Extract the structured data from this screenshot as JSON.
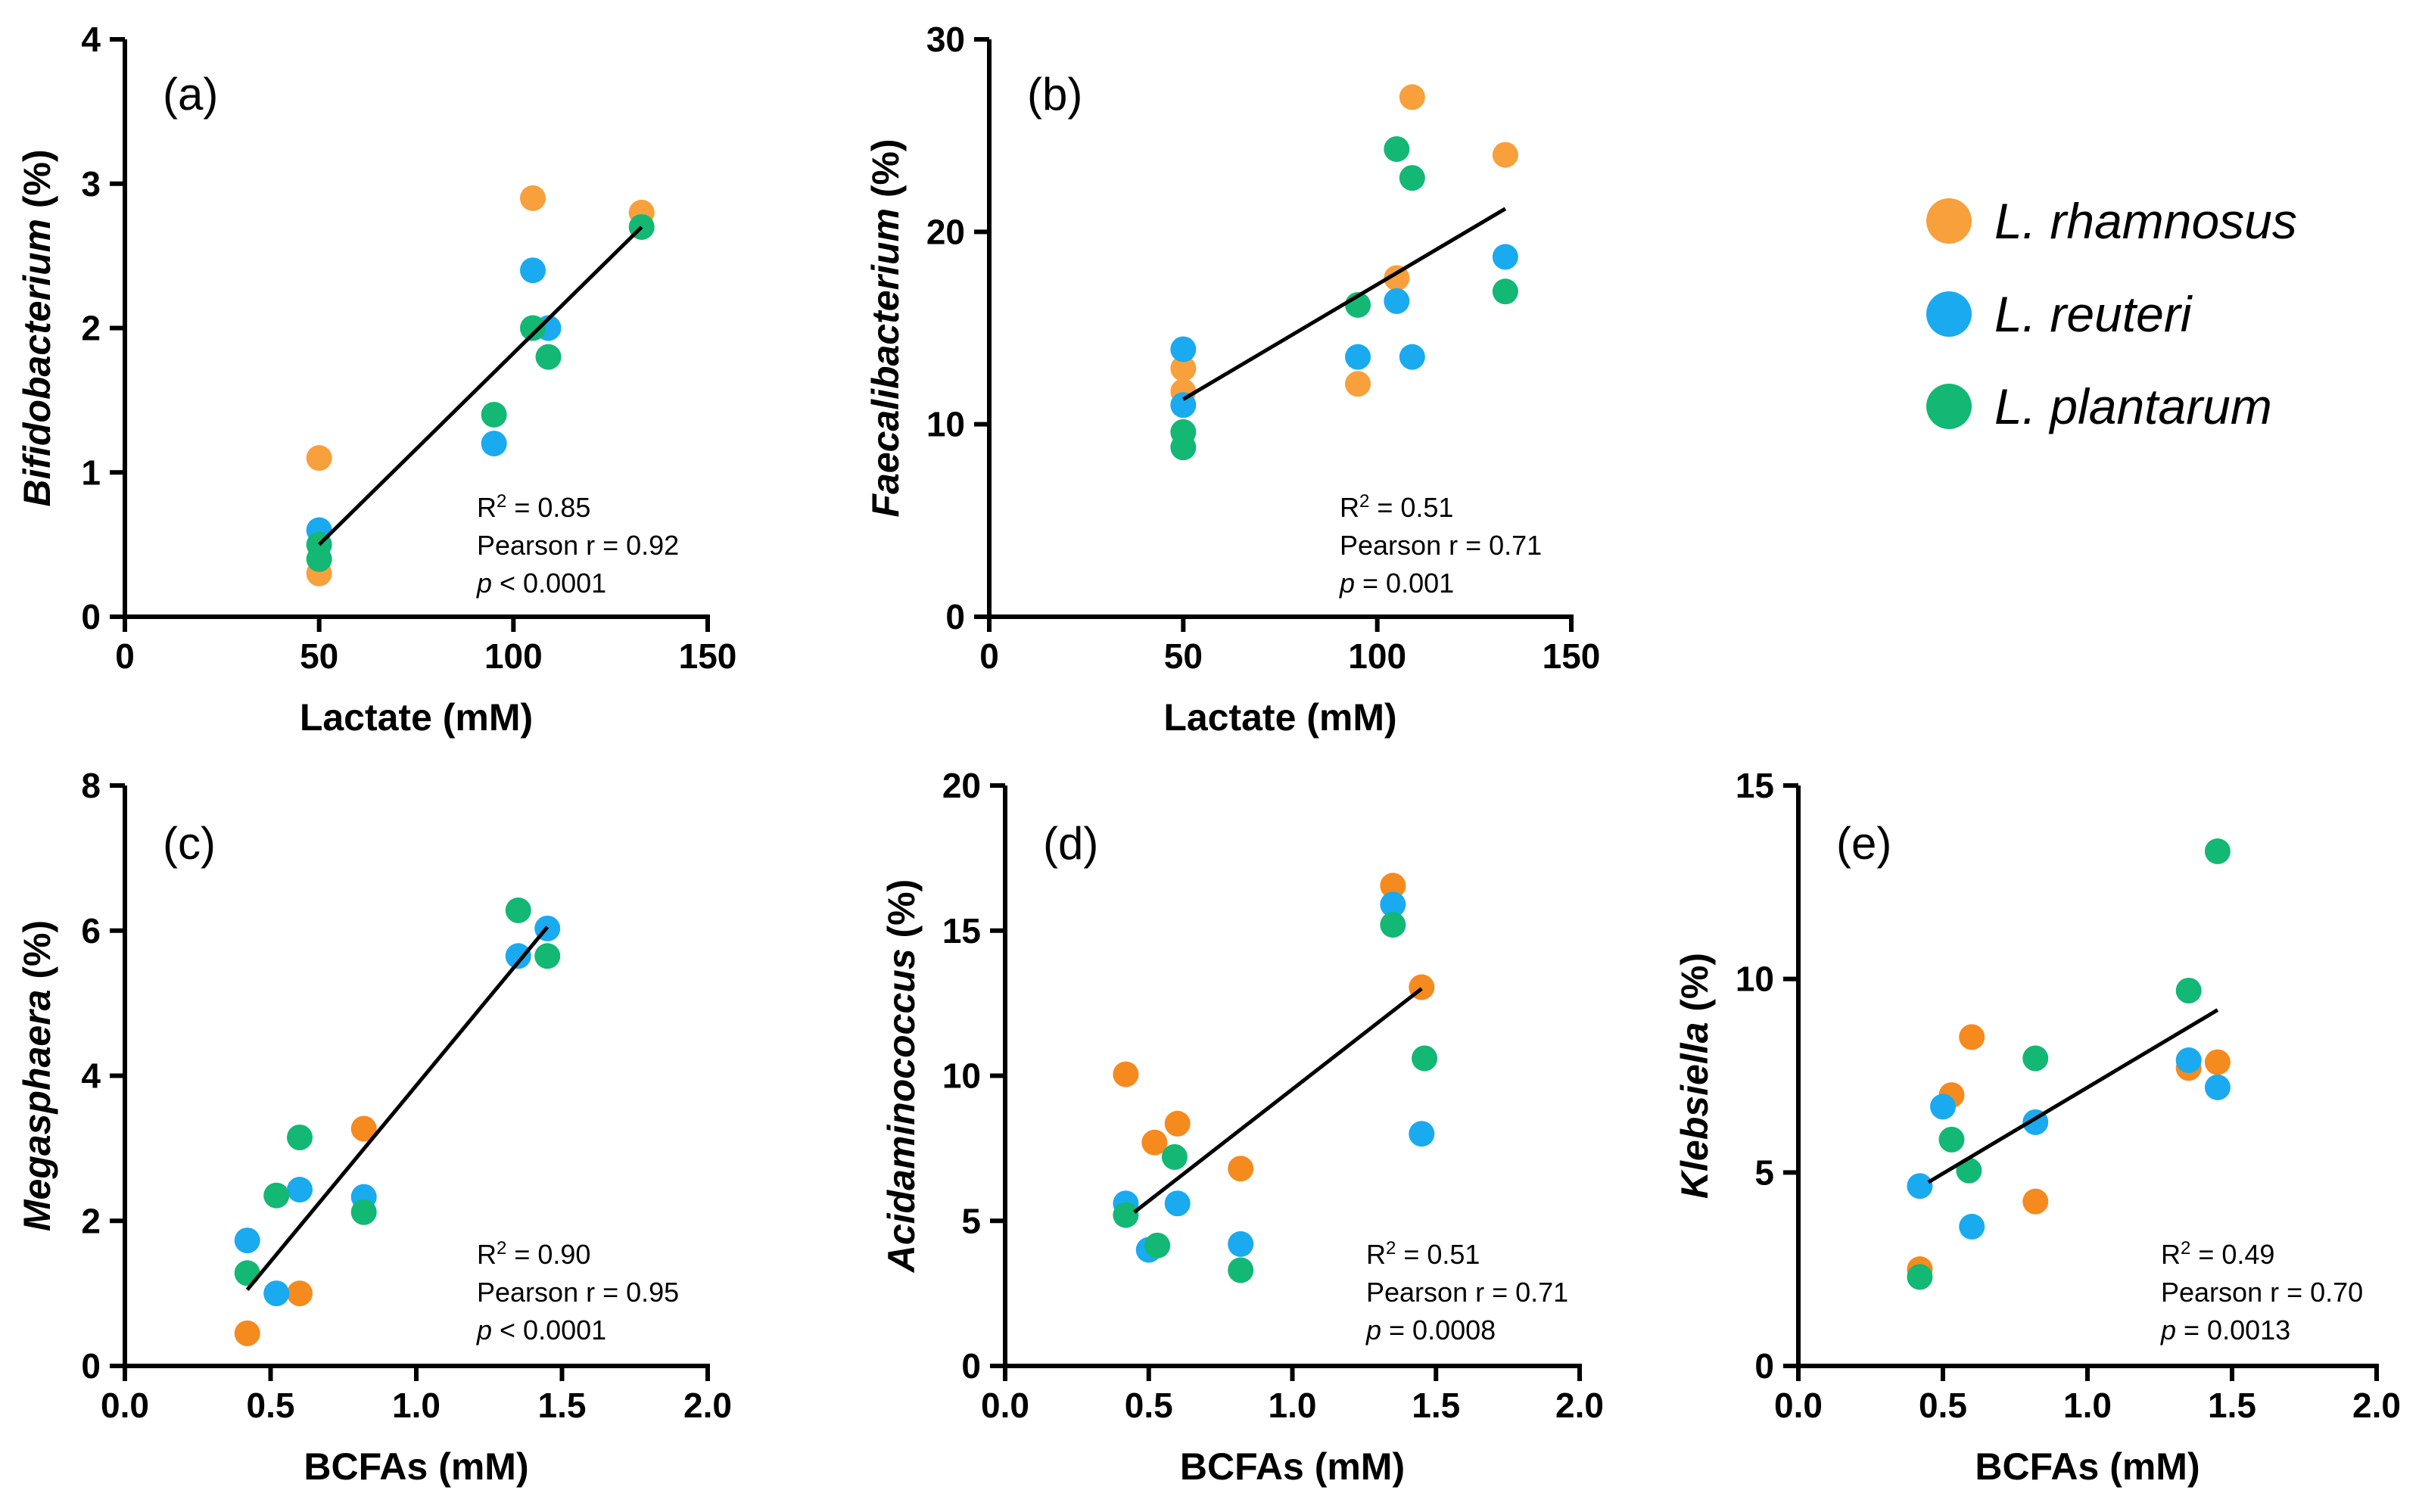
{
  "colors": {
    "rhamnosus": "#F7A03C",
    "reuteri": "#1AAAF0",
    "plantarum": "#12B874",
    "orange_strong": "#F58A1F",
    "axis": "#000000"
  },
  "legend": [
    {
      "key": "rhamnosus",
      "label": "L. rhamnosus",
      "color": "#F7A03C"
    },
    {
      "key": "reuteri",
      "label": "L. reuteri",
      "color": "#1AAAF0"
    },
    {
      "key": "plantarum",
      "label": "L. plantarum",
      "color": "#12B874"
    }
  ],
  "chart_data": [
    {
      "id": "a",
      "type": "scatter",
      "panel_label": "(a)",
      "xlabel": "Lactate (mM)",
      "ylabel_italic": "Bifidobacterium",
      "ylabel_suffix": " (%)",
      "xlim": [
        0,
        150
      ],
      "ylim": [
        0,
        4
      ],
      "xticks": [
        0,
        50,
        100,
        150
      ],
      "yticks": [
        0,
        1,
        2,
        3,
        4
      ],
      "x_tick_labels": [
        "0",
        "50",
        "100",
        "150"
      ],
      "y_tick_labels": [
        "0",
        "1",
        "2",
        "3",
        "4"
      ],
      "series": [
        {
          "name": "L. rhamnosus",
          "key": "rhamnosus",
          "points": [
            [
              50,
              1.1
            ],
            [
              50,
              0.3
            ],
            [
              105,
              2.9
            ],
            [
              133,
              2.8
            ]
          ]
        },
        {
          "name": "L. reuteri",
          "key": "reuteri",
          "points": [
            [
              50,
              0.6
            ],
            [
              95,
              1.2
            ],
            [
              105,
              2.4
            ],
            [
              109,
              2.0
            ]
          ]
        },
        {
          "name": "L. plantarum",
          "key": "plantarum",
          "points": [
            [
              50,
              0.5
            ],
            [
              50,
              0.4
            ],
            [
              95,
              1.4
            ],
            [
              105,
              2.0
            ],
            [
              109,
              1.8
            ],
            [
              133,
              2.7
            ]
          ]
        }
      ],
      "fit": [
        [
          50,
          0.5
        ],
        [
          133,
          2.7
        ]
      ],
      "stats": {
        "r2_label": "R",
        "r2_sup": "2",
        "r2_value": " = 0.85",
        "pearson": "Pearson r = 0.92",
        "p_label": "p",
        "p_value": " < 0.0001"
      }
    },
    {
      "id": "b",
      "type": "scatter",
      "panel_label": "(b)",
      "xlabel": "Lactate (mM)",
      "ylabel_italic": "Faecalibacterium",
      "ylabel_suffix": " (%)",
      "xlim": [
        0,
        150
      ],
      "ylim": [
        0,
        30
      ],
      "xticks": [
        0,
        50,
        100,
        150
      ],
      "yticks": [
        0,
        10,
        20,
        30
      ],
      "x_tick_labels": [
        "0",
        "50",
        "100",
        "150"
      ],
      "y_tick_labels": [
        "0",
        "10",
        "20",
        "30"
      ],
      "series": [
        {
          "name": "L. rhamnosus",
          "key": "rhamnosus",
          "points": [
            [
              50,
              12.9
            ],
            [
              50,
              11.7
            ],
            [
              95,
              12.1
            ],
            [
              105,
              17.6
            ],
            [
              109,
              27.0
            ],
            [
              133,
              24.0
            ]
          ]
        },
        {
          "name": "L. reuteri",
          "key": "reuteri",
          "points": [
            [
              50,
              13.9
            ],
            [
              50,
              11.0
            ],
            [
              95,
              13.5
            ],
            [
              105,
              16.4
            ],
            [
              109,
              13.5
            ],
            [
              133,
              18.7
            ]
          ]
        },
        {
          "name": "L. plantarum",
          "key": "plantarum",
          "points": [
            [
              50,
              9.6
            ],
            [
              50,
              8.8
            ],
            [
              95,
              16.2
            ],
            [
              105,
              24.3
            ],
            [
              109,
              22.8
            ],
            [
              133,
              16.9
            ]
          ]
        }
      ],
      "fit": [
        [
          50,
          11.3
        ],
        [
          133,
          21.2
        ]
      ],
      "stats": {
        "r2_label": "R",
        "r2_sup": "2",
        "r2_value": " = 0.51",
        "pearson": "Pearson r = 0.71",
        "p_label": "p",
        "p_value": " = 0.001"
      }
    },
    {
      "id": "c",
      "type": "scatter",
      "panel_label": "(c)",
      "xlabel": "BCFAs (mM)",
      "ylabel_italic": "Megasphaera",
      "ylabel_suffix": " (%)",
      "xlim": [
        0,
        2
      ],
      "ylim": [
        0,
        8
      ],
      "xticks": [
        0,
        0.5,
        1,
        1.5,
        2
      ],
      "yticks": [
        0,
        2,
        4,
        6,
        8
      ],
      "x_tick_labels": [
        "0.0",
        "0.5",
        "1.0",
        "1.5",
        "2.0"
      ],
      "y_tick_labels": [
        "0",
        "2",
        "4",
        "6",
        "8"
      ],
      "series": [
        {
          "name": "L. rhamnosus",
          "key": "rhamnosus_strong",
          "points": [
            [
              0.42,
              0.45
            ],
            [
              0.6,
              1.0
            ],
            [
              0.82,
              3.27
            ]
          ]
        },
        {
          "name": "L. reuteri",
          "key": "reuteri",
          "points": [
            [
              0.42,
              1.73
            ],
            [
              0.52,
              1.0
            ],
            [
              0.6,
              2.43
            ],
            [
              0.82,
              2.33
            ],
            [
              1.35,
              5.65
            ],
            [
              1.45,
              6.03
            ]
          ]
        },
        {
          "name": "L. plantarum",
          "key": "plantarum",
          "points": [
            [
              0.42,
              1.28
            ],
            [
              0.52,
              2.35
            ],
            [
              0.6,
              3.15
            ],
            [
              0.82,
              2.12
            ],
            [
              1.35,
              6.28
            ],
            [
              1.45,
              5.65
            ]
          ]
        }
      ],
      "fit": [
        [
          0.42,
          1.05
        ],
        [
          1.45,
          6.05
        ]
      ],
      "stats": {
        "r2_label": "R",
        "r2_sup": "2",
        "r2_value": " = 0.90",
        "pearson": "Pearson r = 0.95",
        "p_label": "p",
        "p_value": " < 0.0001"
      }
    },
    {
      "id": "d",
      "type": "scatter",
      "panel_label": "(d)",
      "xlabel": "BCFAs (mM)",
      "ylabel_italic": "Acidaminococcus",
      "ylabel_suffix": " (%)",
      "xlim": [
        0,
        2
      ],
      "ylim": [
        0,
        20
      ],
      "xticks": [
        0,
        0.5,
        1,
        1.5,
        2
      ],
      "yticks": [
        0,
        5,
        10,
        15,
        20
      ],
      "x_tick_labels": [
        "0.0",
        "0.5",
        "1.0",
        "1.5",
        "2.0"
      ],
      "y_tick_labels": [
        "0",
        "5",
        "10",
        "15",
        "20"
      ],
      "series": [
        {
          "name": "L. rhamnosus",
          "key": "rhamnosus_strong",
          "points": [
            [
              0.42,
              10.05
            ],
            [
              0.52,
              7.7
            ],
            [
              0.6,
              8.35
            ],
            [
              0.82,
              6.8
            ],
            [
              1.35,
              16.55
            ],
            [
              1.45,
              13.05
            ]
          ]
        },
        {
          "name": "L. reuteri",
          "key": "reuteri",
          "points": [
            [
              0.42,
              5.6
            ],
            [
              0.5,
              4.0
            ],
            [
              0.6,
              5.6
            ],
            [
              0.82,
              4.2
            ],
            [
              1.35,
              15.9
            ],
            [
              1.45,
              8.0
            ]
          ]
        },
        {
          "name": "L. plantarum",
          "key": "plantarum",
          "points": [
            [
              0.42,
              5.2
            ],
            [
              0.53,
              4.15
            ],
            [
              0.59,
              7.2
            ],
            [
              0.82,
              3.3
            ],
            [
              1.35,
              15.2
            ],
            [
              1.46,
              10.6
            ]
          ]
        }
      ],
      "fit": [
        [
          0.45,
          5.3
        ],
        [
          1.45,
          13.0
        ]
      ],
      "stats": {
        "r2_label": "R",
        "r2_sup": "2",
        "r2_value": " = 0.51",
        "pearson": "Pearson r = 0.71",
        "p_label": "p",
        "p_value": " = 0.0008"
      }
    },
    {
      "id": "e",
      "type": "scatter",
      "panel_label": "(e)",
      "xlabel": "BCFAs (mM)",
      "ylabel_italic": "Klebsiella",
      "ylabel_suffix": " (%)",
      "xlim": [
        0,
        2
      ],
      "ylim": [
        0,
        15
      ],
      "xticks": [
        0,
        0.5,
        1,
        1.5,
        2
      ],
      "yticks": [
        0,
        5,
        10,
        15
      ],
      "x_tick_labels": [
        "0.0",
        "0.5",
        "1.0",
        "1.5",
        "2.0"
      ],
      "y_tick_labels": [
        "0",
        "5",
        "10",
        "15"
      ],
      "series": [
        {
          "name": "L. rhamnosus",
          "key": "rhamnosus_strong",
          "points": [
            [
              0.42,
              2.5
            ],
            [
              0.53,
              7.0
            ],
            [
              0.6,
              8.5
            ],
            [
              0.82,
              4.25
            ],
            [
              1.35,
              7.7
            ],
            [
              1.45,
              7.85
            ]
          ]
        },
        {
          "name": "L. reuteri",
          "key": "reuteri",
          "points": [
            [
              0.42,
              4.65
            ],
            [
              0.5,
              6.7
            ],
            [
              0.6,
              3.6
            ],
            [
              0.82,
              6.3
            ],
            [
              1.35,
              7.9
            ],
            [
              1.45,
              7.2
            ]
          ]
        },
        {
          "name": "L. plantarum",
          "key": "plantarum",
          "points": [
            [
              0.42,
              2.3
            ],
            [
              0.53,
              5.85
            ],
            [
              0.59,
              5.05
            ],
            [
              0.82,
              7.95
            ],
            [
              1.35,
              9.7
            ],
            [
              1.45,
              13.3
            ]
          ]
        }
      ],
      "fit": [
        [
          0.45,
          4.75
        ],
        [
          1.45,
          9.2
        ]
      ],
      "stats": {
        "r2_label": "R",
        "r2_sup": "2",
        "r2_value": " = 0.49",
        "pearson": "Pearson r = 0.70",
        "p_label": "p",
        "p_value": " = 0.0013"
      }
    }
  ]
}
